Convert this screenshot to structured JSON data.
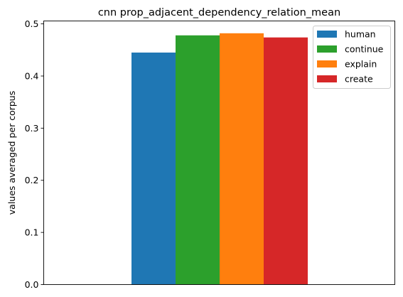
{
  "chart_data": {
    "type": "bar",
    "title": "cnn prop_adjacent_dependency_relation_mean",
    "xlabel": "",
    "ylabel": "values averaged per corpus",
    "categories": [
      ""
    ],
    "ylim": [
      0,
      0.5056
    ],
    "yticks": [
      0.0,
      0.1,
      0.2,
      0.3,
      0.4,
      0.5
    ],
    "ytick_labels": [
      "0.0",
      "0.1",
      "0.2",
      "0.3",
      "0.4",
      "0.5"
    ],
    "grid": false,
    "legend_position": "top-right",
    "series": [
      {
        "name": "human",
        "values": [
          0.445
        ],
        "color": "#1f77b4"
      },
      {
        "name": "continue",
        "values": [
          0.478
        ],
        "color": "#2ca02c"
      },
      {
        "name": "explain",
        "values": [
          0.482
        ],
        "color": "#ff7f0e"
      },
      {
        "name": "create",
        "values": [
          0.474
        ],
        "color": "#d62728"
      }
    ]
  }
}
